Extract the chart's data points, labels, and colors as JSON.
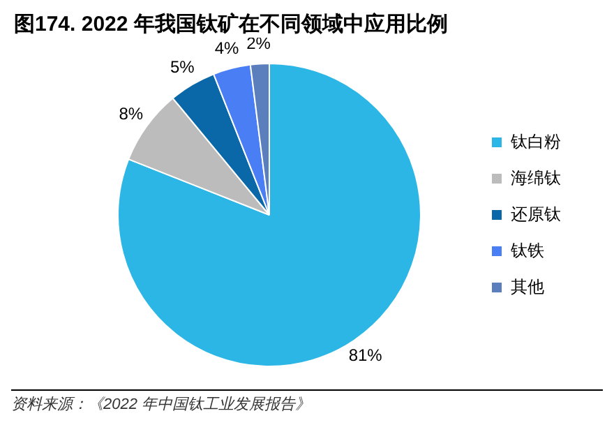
{
  "chart_data": {
    "type": "pie",
    "title": "图174. 2022 年我国钛矿在不同领域中应用比例",
    "categories": [
      "钛白粉",
      "海绵钛",
      "还原钛",
      "钛铁",
      "其他"
    ],
    "values": [
      81,
      8,
      5,
      4,
      2
    ],
    "value_labels": [
      "81%",
      "8%",
      "5%",
      "4%",
      "2%"
    ],
    "colors": [
      "#2bb6e6",
      "#bcbcbc",
      "#0a67a8",
      "#4a7ef5",
      "#5b7fbd"
    ],
    "legend": "right",
    "annotations": [
      "资料来源：《2022 年中国钛工业发展报告》"
    ]
  }
}
